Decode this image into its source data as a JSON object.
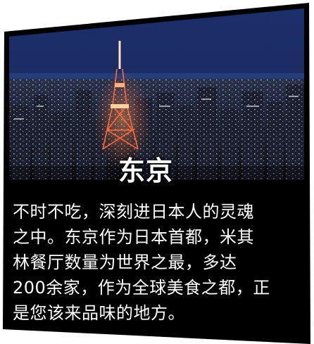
{
  "title": "东京",
  "description_lines": [
    "不时不吃，深刻进日本人的灵魂",
    "之中。东京作为日本首都，米其",
    "林餐厅数量为世界之最，多达",
    "200余家，作为全球美食之都，正",
    "是您该来品味的地方。"
  ],
  "colors": {
    "card": "#000000",
    "sky_top": "#1b2f6b",
    "sky_bottom": "#0a1636",
    "tower": "#ff6a3d",
    "text": "#ffffff"
  }
}
